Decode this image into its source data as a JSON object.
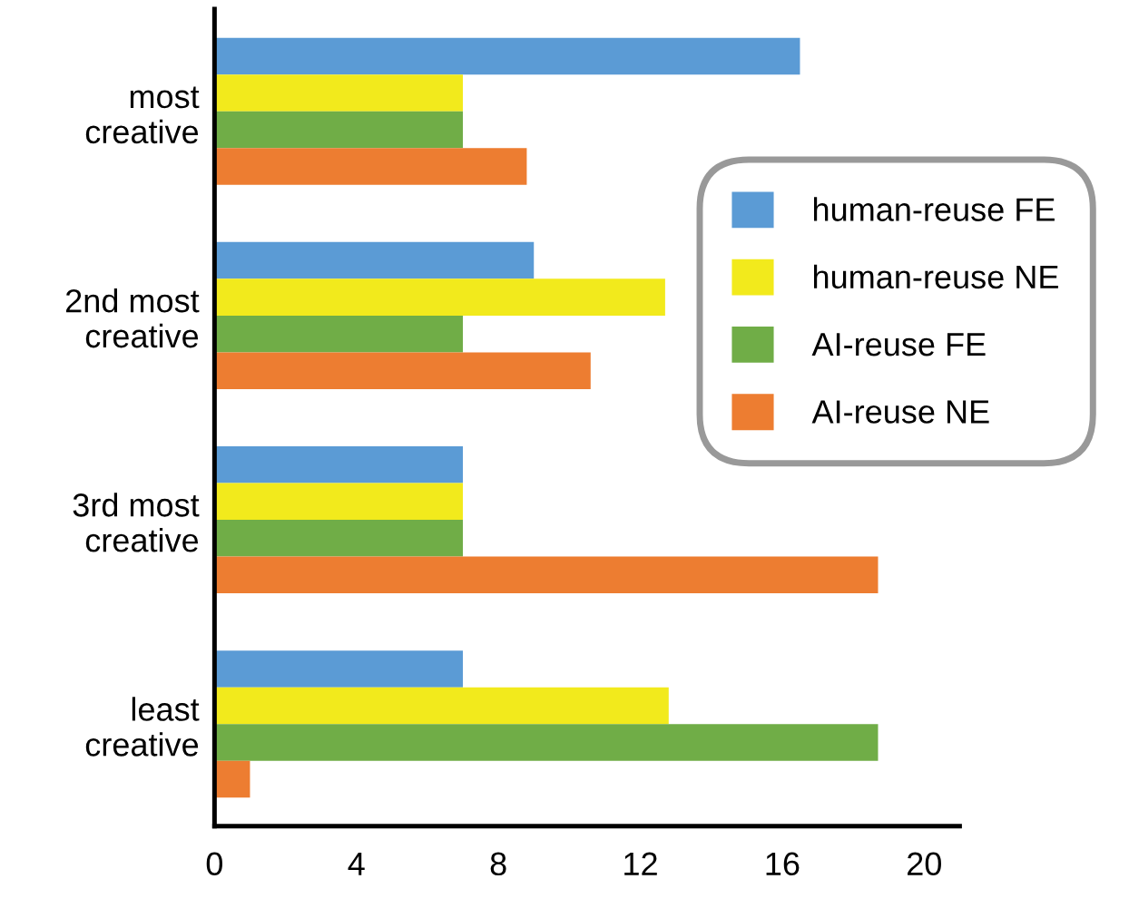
{
  "chart_data": {
    "type": "bar",
    "orientation": "horizontal",
    "categories": [
      "most\ncreative",
      "2nd most\ncreative",
      "3rd most\ncreative",
      "least\ncreative"
    ],
    "series": [
      {
        "name": "human-reuse FE",
        "color": "#5b9bd5",
        "values": [
          16.5,
          9,
          7,
          7
        ]
      },
      {
        "name": "human-reuse NE",
        "color": "#f2ea1c",
        "values": [
          7,
          12.7,
          7,
          12.8
        ]
      },
      {
        "name": "AI-reuse FE",
        "color": "#70ad47",
        "values": [
          7,
          7,
          7,
          18.7
        ]
      },
      {
        "name": "AI-reuse NE",
        "color": "#ed7d31",
        "values": [
          8.8,
          10.6,
          18.7,
          1
        ]
      }
    ],
    "xlim": [
      0,
      21
    ],
    "xticks": [
      0,
      4,
      8,
      12,
      16,
      20
    ],
    "grid": false,
    "legend": "right"
  }
}
